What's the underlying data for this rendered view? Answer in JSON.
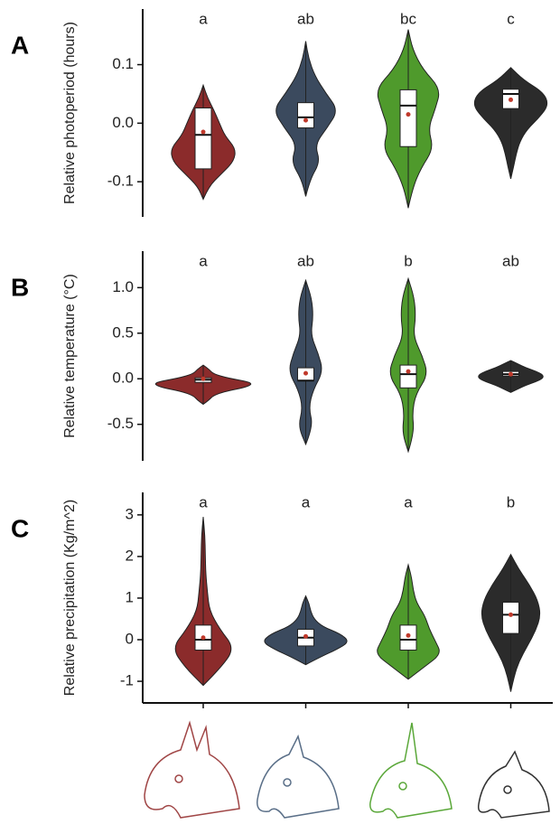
{
  "chart_data": [
    {
      "type": "violin",
      "panel_label": "A",
      "ylabel": "Relative photoperiod (hours)",
      "ylim": [
        -0.16,
        0.195
      ],
      "yticks": [
        0.1,
        {
          "value": 0,
          "label": "0.0"
        },
        -0.1
      ],
      "x_axis_line": false,
      "groups": [
        {
          "letter": "a",
          "color": "#8b2b2b",
          "min": -0.13,
          "max": 0.065,
          "q1": -0.078,
          "median": -0.02,
          "q3": 0.026,
          "mean": -0.015,
          "density": [
            0,
            0.15,
            0.5,
            0.85,
            0.9,
            0.6,
            0.45,
            0.3,
            0.12,
            0
          ]
        },
        {
          "letter": "ab",
          "color": "#3b4a5e",
          "min": -0.125,
          "max": 0.14,
          "q1": -0.008,
          "median": 0.01,
          "q3": 0.035,
          "mean": 0.005,
          "density": [
            0,
            0.12,
            0.4,
            0.25,
            0.6,
            0.9,
            0.55,
            0.25,
            0.08,
            0
          ]
        },
        {
          "letter": "bc",
          "color": "#4f9a2c",
          "min": -0.145,
          "max": 0.16,
          "q1": -0.04,
          "median": 0.03,
          "q3": 0.057,
          "mean": 0.015,
          "density": [
            0,
            0.12,
            0.35,
            0.7,
            0.55,
            0.75,
            0.9,
            0.4,
            0.12,
            0
          ]
        },
        {
          "letter": "c",
          "color": "#2b2b2b",
          "min": -0.095,
          "max": 0.095,
          "q1": 0.025,
          "median": 0.05,
          "q3": 0.058,
          "mean": 0.04,
          "density": [
            0,
            0.08,
            0.15,
            0.25,
            0.45,
            0.8,
            1.05,
            0.9,
            0.35,
            0
          ]
        }
      ]
    },
    {
      "type": "violin",
      "panel_label": "B",
      "ylabel": "Relative temperature (°C)",
      "ylim": [
        -0.9,
        1.4
      ],
      "yticks": [
        {
          "value": 1,
          "label": "1.0"
        },
        0.5,
        {
          "value": 0,
          "label": "0.0"
        },
        -0.5
      ],
      "x_axis_line": false,
      "groups": [
        {
          "letter": "a",
          "color": "#8b2b2b",
          "min": -0.28,
          "max": 0.15,
          "q1": -0.04,
          "median": -0.01,
          "q3": 0.01,
          "mean": 0,
          "density": [
            0,
            0.12,
            0.2,
            0.45,
            0.9,
            1.0,
            0.5,
            0.2,
            0.12,
            0
          ]
        },
        {
          "letter": "ab",
          "color": "#3b4a5e",
          "min": -0.72,
          "max": 1.08,
          "q1": -0.02,
          "median": -0.02,
          "q3": 0.12,
          "mean": 0.06,
          "density": [
            0,
            0.15,
            0.06,
            0.15,
            0.35,
            0.25,
            0.1,
            0.15,
            0.12,
            0
          ]
        },
        {
          "letter": "b",
          "color": "#4f9a2c",
          "min": -0.8,
          "max": 1.1,
          "q1": -0.1,
          "median": 0.05,
          "q3": 0.15,
          "mean": 0.08,
          "density": [
            0,
            0.12,
            0.08,
            0.15,
            0.4,
            0.28,
            0.1,
            0.15,
            0.12,
            0
          ]
        },
        {
          "letter": "ab",
          "color": "#2b2b2b",
          "min": -0.15,
          "max": 0.2,
          "q1": 0.03,
          "median": 0.05,
          "q3": 0.08,
          "mean": 0.05,
          "density": [
            0,
            0.15,
            0.3,
            0.5,
            0.65,
            0.65,
            0.5,
            0.3,
            0.15,
            0
          ]
        }
      ]
    },
    {
      "type": "violin",
      "panel_label": "C",
      "ylabel": "Relative precipitation (Kg/m^2)",
      "ylim": [
        -1.52,
        3.54
      ],
      "yticks": [
        3,
        2,
        1,
        0,
        -1
      ],
      "x_axis_line": true,
      "groups": [
        {
          "letter": "a",
          "color": "#8b2b2b",
          "min": -1.1,
          "max": 2.95,
          "q1": -0.25,
          "median": 0,
          "q3": 0.35,
          "mean": 0.05,
          "density": [
            0,
            0.45,
            0.75,
            0.4,
            0.15,
            0.1,
            0.06,
            0.05,
            0.04,
            0
          ]
        },
        {
          "letter": "a",
          "color": "#3b4a5e",
          "min": -0.6,
          "max": 1.05,
          "q1": -0.15,
          "median": 0.05,
          "q3": 0.25,
          "mean": 0.08,
          "density": [
            0,
            0.35,
            0.75,
            1.05,
            0.85,
            0.4,
            0.2,
            0.12,
            0.08,
            0
          ]
        },
        {
          "letter": "a",
          "color": "#4f9a2c",
          "min": -0.95,
          "max": 1.8,
          "q1": -0.25,
          "median": 0,
          "q3": 0.35,
          "mean": 0.1,
          "density": [
            0,
            0.4,
            0.8,
            0.65,
            0.5,
            0.4,
            0.2,
            0.12,
            0.08,
            0
          ]
        },
        {
          "letter": "b",
          "color": "#2b2b2b",
          "min": -1.25,
          "max": 2.05,
          "q1": 0.15,
          "median": 0.6,
          "q3": 0.9,
          "mean": 0.6,
          "density": [
            0,
            0.08,
            0.2,
            0.4,
            0.6,
            0.72,
            0.65,
            0.45,
            0.2,
            0
          ]
        }
      ]
    }
  ]
}
